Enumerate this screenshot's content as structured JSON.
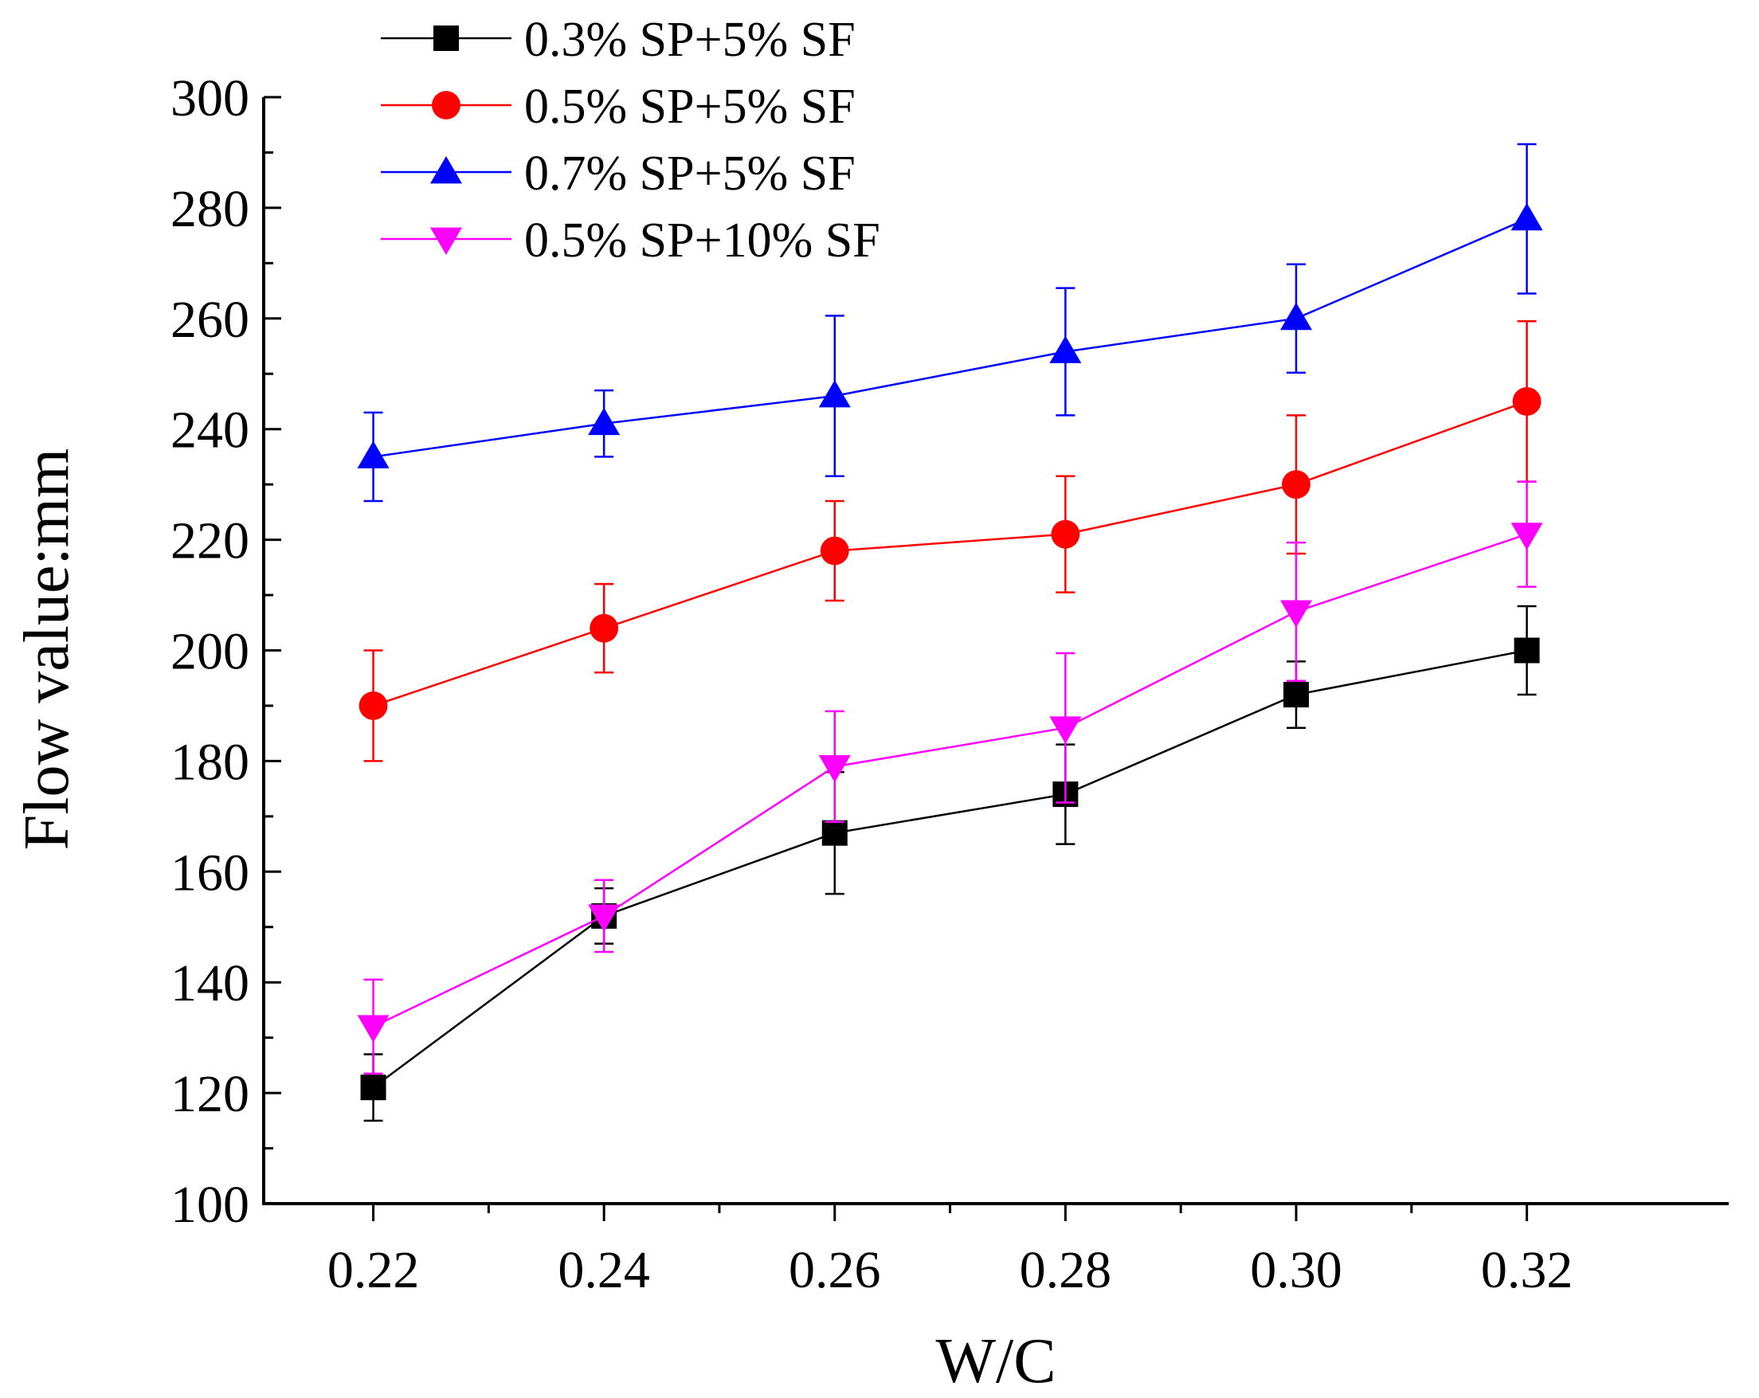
{
  "chart_data": {
    "type": "line",
    "title": "",
    "xlabel": "W/C",
    "ylabel": "Flow value:mm",
    "x": [
      0.22,
      0.24,
      0.26,
      0.28,
      0.3,
      0.32
    ],
    "x_tick_labels": [
      "0.22",
      "0.24",
      "0.26",
      "0.28",
      "0.30",
      "0.32"
    ],
    "xlim": [
      0.2105,
      0.3375
    ],
    "ylim": [
      100,
      300
    ],
    "y_ticks": [
      100,
      120,
      140,
      160,
      180,
      200,
      220,
      240,
      260,
      280,
      300
    ],
    "y_tick_labels": [
      "100",
      "120",
      "140",
      "160",
      "180",
      "200",
      "220",
      "240",
      "260",
      "280",
      "300"
    ],
    "grid": false,
    "legend_position": "top-left",
    "series": [
      {
        "name": "0.3% SP+5% SF",
        "color": "#000000",
        "marker": "square",
        "values": [
          121,
          152,
          167,
          174,
          192,
          200
        ],
        "error_upper": [
          6,
          5,
          11,
          9,
          6,
          8
        ],
        "error_lower": [
          6,
          5,
          11,
          9,
          6,
          8
        ]
      },
      {
        "name": "0.5% SP+5% SF",
        "color": "#ff0000",
        "marker": "circle",
        "values": [
          190,
          204,
          218,
          221,
          230,
          245
        ],
        "error_upper": [
          10,
          8,
          9,
          10.5,
          12.5,
          14.5
        ],
        "error_lower": [
          10,
          8,
          9,
          10.5,
          12.5,
          14.5
        ]
      },
      {
        "name": "0.7% SP+5% SF",
        "color": "#0000ff",
        "marker": "triangle-up",
        "values": [
          235,
          241,
          246,
          254,
          260,
          278
        ],
        "error_upper": [
          8,
          6,
          14.5,
          11.5,
          9.8,
          13.5
        ],
        "error_lower": [
          8,
          6,
          14.5,
          11.5,
          9.8,
          13.5
        ]
      },
      {
        "name": "0.5% SP+10% SF",
        "color": "#ff00ff",
        "marker": "triangle-down",
        "values": [
          132,
          152,
          179,
          186,
          207,
          221
        ],
        "error_upper": [
          8.5,
          6.5,
          10,
          13.5,
          12.5,
          9.5
        ],
        "error_lower": [
          8.5,
          6.5,
          10,
          13.5,
          12.5,
          9.5
        ]
      }
    ]
  }
}
